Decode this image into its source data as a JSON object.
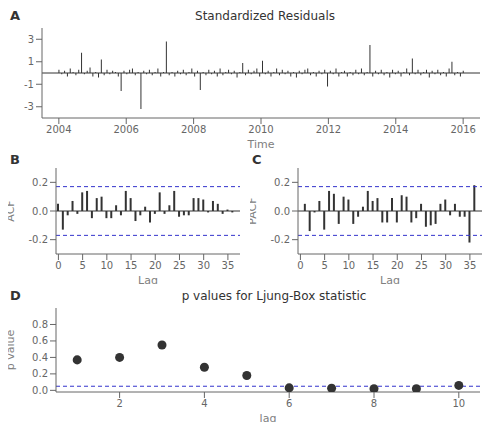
{
  "chart_data": [
    {
      "type": "stem",
      "title": "Standardized Residuals",
      "panel_label": "A",
      "x_label": "Time",
      "x": [
        2004,
        2004.0839,
        2004.1678,
        2004.2517,
        2004.3357,
        2004.4196,
        2004.5035,
        2004.5874,
        2004.6713,
        2004.7552,
        2004.8392,
        2004.9231,
        2005.007,
        2005.0909,
        2005.1748,
        2005.2587,
        2005.3427,
        2005.4266,
        2005.5105,
        2005.5944,
        2005.6783,
        2005.7622,
        2005.8462,
        2005.9301,
        2006.014,
        2006.0979,
        2006.1818,
        2006.2657,
        2006.3497,
        2006.4336,
        2006.5175,
        2006.6014,
        2006.6853,
        2006.7692,
        2006.8531,
        2006.9371,
        2007.021,
        2007.1049,
        2007.1888,
        2007.2727,
        2007.3566,
        2007.4406,
        2007.5245,
        2007.6084,
        2007.6923,
        2007.7762,
        2007.8601,
        2007.9441,
        2008.028,
        2008.1119,
        2008.1958,
        2008.2797,
        2008.3636,
        2008.4476,
        2008.5315,
        2008.6154,
        2008.6993,
        2008.7832,
        2008.8671,
        2008.951,
        2009.035,
        2009.1189,
        2009.2028,
        2009.2867,
        2009.3706,
        2009.4545,
        2009.5385,
        2009.6224,
        2009.7063,
        2009.7902,
        2009.8741,
        2009.958,
        2010.042,
        2010.1259,
        2010.2098,
        2010.2937,
        2010.3776,
        2010.4615,
        2010.5455,
        2010.6294,
        2010.7133,
        2010.7972,
        2010.8811,
        2010.965,
        2011.049,
        2011.1329,
        2011.2168,
        2011.3007,
        2011.3846,
        2011.4685,
        2011.5524,
        2011.6364,
        2011.7203,
        2011.8042,
        2011.8881,
        2011.972,
        2012.0559,
        2012.1399,
        2012.2238,
        2012.3077,
        2012.3916,
        2012.4755,
        2012.5594,
        2012.6434,
        2012.7273,
        2012.8112,
        2012.8951,
        2012.979,
        2013.0629,
        2013.1469,
        2013.2308,
        2013.3147,
        2013.3986,
        2013.4825,
        2013.5664,
        2013.6503,
        2013.7343,
        2013.8182,
        2013.9021,
        2013.986,
        2014.0699,
        2014.1538,
        2014.2378,
        2014.3217,
        2014.4056,
        2014.4895,
        2014.5734,
        2014.6573,
        2014.7413,
        2014.8252,
        2014.9091,
        2014.993,
        2015.0769,
        2015.1608,
        2015.2448,
        2015.3287,
        2015.4126,
        2015.4965,
        2015.5804,
        2015.6643,
        2015.7483,
        2015.8322,
        2015.9161,
        2016
      ],
      "values": [
        0.3,
        -0.1,
        0.2,
        -0.3,
        0.4,
        0.1,
        -0.2,
        0.3,
        1.8,
        -0.1,
        0.2,
        0.5,
        -0.3,
        0.1,
        -0.4,
        1.2,
        -0.2,
        0.3,
        -0.1,
        0.2,
        0.1,
        -0.3,
        -1.6,
        0.2,
        -0.1,
        0.3,
        0.4,
        -0.2,
        0.1,
        -3.2,
        0.2,
        -0.1,
        0.3,
        -0.2,
        0.1,
        0.4,
        -0.3,
        0.1,
        2.8,
        -0.2,
        0.1,
        -0.3,
        0.2,
        -0.1,
        0.3,
        -0.2,
        0.1,
        0.4,
        -0.3,
        0.2,
        -1.5,
        0.1,
        -0.2,
        0.3,
        -0.1,
        0.2,
        -0.3,
        0.4,
        -0.2,
        0.1,
        0.3,
        -0.1,
        0.2,
        -0.4,
        0.1,
        0.9,
        -0.2,
        0.3,
        -0.1,
        0.2,
        0.4,
        -0.3,
        1.1,
        -0.1,
        0.2,
        -0.3,
        0.1,
        0.4,
        -0.2,
        0.3,
        -0.1,
        0.2,
        -0.3,
        0.1,
        -0.4,
        0.2,
        -0.1,
        0.3,
        0.4,
        -0.2,
        0.1,
        -0.3,
        0.2,
        -0.1,
        0.3,
        -1.2,
        0.2,
        -0.1,
        0.4,
        -0.3,
        0.1,
        0.2,
        -0.3,
        0.1,
        -0.2,
        0.3,
        -0.1,
        0.4,
        -0.2,
        0.1,
        2.5,
        -0.3,
        0.2,
        -0.1,
        0.3,
        -0.2,
        0.1,
        -0.4,
        0.3,
        -0.1,
        0.2,
        -0.3,
        0.1,
        0.4,
        -0.2,
        1.3,
        -0.1,
        0.3,
        -0.2,
        0.1,
        0.3,
        -0.4,
        0.2,
        -0.1,
        0.3,
        -0.2,
        0.1,
        -0.3,
        0.4,
        1.0,
        -0.2,
        0.1,
        -0.3,
        0.2
      ],
      "color": "#333333",
      "xlim": [
        2003.5,
        2016.5
      ],
      "xticks": [
        2004,
        2006,
        2008,
        2010,
        2012,
        2014,
        2016
      ],
      "ylim": [
        -4,
        4
      ],
      "yticks": [
        -3,
        -1,
        1,
        3
      ],
      "reference_lines": [
        {
          "value": 0,
          "color": "#333333"
        }
      ]
    },
    {
      "type": "stem",
      "panel_label": "B",
      "x_label": "Lag",
      "y_label": "ACF",
      "x": [
        0,
        1,
        2,
        3,
        4,
        5,
        6,
        7,
        8,
        9,
        10,
        11,
        12,
        13,
        14,
        15,
        16,
        17,
        18,
        19,
        20,
        21,
        22,
        23,
        24,
        25,
        26,
        27,
        28,
        29,
        30,
        31,
        32,
        33,
        34,
        35,
        36
      ],
      "values": [
        0.05,
        -0.13,
        -0.03,
        0.07,
        -0.02,
        0.13,
        0.14,
        -0.05,
        0.09,
        0.1,
        -0.05,
        -0.05,
        0.04,
        -0.03,
        0.14,
        0.09,
        -0.07,
        -0.03,
        0.03,
        -0.08,
        -0.02,
        0.13,
        -0.02,
        0.04,
        0.14,
        -0.04,
        -0.03,
        -0.03,
        0.09,
        0.09,
        0.08,
        -0.01,
        0.07,
        0.05,
        -0.02,
        0.01,
        -0.01
      ],
      "color": "#333333",
      "xlim": [
        -0.5,
        37.5
      ],
      "xticks": [
        0,
        5,
        10,
        15,
        20,
        25,
        30,
        35
      ],
      "ylim": [
        -0.3,
        0.3
      ],
      "yticks": [
        -0.2,
        {
          "value": 0,
          "label": "0.0"
        },
        0.2
      ],
      "reference_lines": [
        {
          "value": 0,
          "color": "#333333"
        },
        {
          "value": 0.17,
          "color": "#3333CC",
          "line_style": "dashed"
        },
        {
          "value": -0.17,
          "color": "#3333CC",
          "line_style": "dashed"
        }
      ]
    },
    {
      "type": "stem",
      "panel_label": "C",
      "x_label": "Lag",
      "y_label": "PACF",
      "x": [
        1,
        2,
        3,
        4,
        5,
        6,
        7,
        8,
        9,
        10,
        11,
        12,
        13,
        14,
        15,
        16,
        17,
        18,
        19,
        20,
        21,
        22,
        23,
        24,
        25,
        26,
        27,
        28,
        29,
        30,
        31,
        32,
        33,
        34,
        35,
        36
      ],
      "values": [
        0.05,
        -0.14,
        -0.01,
        0.07,
        -0.13,
        0.14,
        0.12,
        -0.09,
        0.1,
        0.08,
        -0.09,
        -0.04,
        0.03,
        0.14,
        0.07,
        0.09,
        -0.08,
        -0.08,
        0.09,
        -0.08,
        0.11,
        0.1,
        -0.08,
        -0.05,
        0.05,
        -0.11,
        -0.1,
        -0.09,
        0.05,
        0.08,
        -0.03,
        0.05,
        -0.04,
        -0.04,
        -0.22,
        0.18
      ],
      "color": "#333333",
      "xlim": [
        -0.5,
        37.5
      ],
      "xticks": [
        0,
        5,
        10,
        15,
        20,
        25,
        30,
        35
      ],
      "ylim": [
        -0.3,
        0.3
      ],
      "yticks": [
        -0.2,
        {
          "value": 0,
          "label": "0.0"
        },
        0.2
      ],
      "reference_lines": [
        {
          "value": 0,
          "color": "#333333"
        },
        {
          "value": 0.17,
          "color": "#3333CC",
          "line_style": "dashed"
        },
        {
          "value": -0.17,
          "color": "#3333CC",
          "line_style": "dashed"
        }
      ]
    },
    {
      "type": "scatter",
      "title": "p values for Ljung-Box statistic",
      "panel_label": "D",
      "x_label": "lag",
      "y_label": "p value",
      "x": [
        1,
        2,
        3,
        4,
        5,
        6,
        7,
        8,
        9,
        10
      ],
      "values": [
        0.37,
        0.4,
        0.55,
        0.28,
        0.18,
        0.03,
        0.025,
        0.02,
        0.02,
        0.06
      ],
      "color": "#333333",
      "xlim": [
        0.5,
        10.5
      ],
      "xticks": [
        2,
        4,
        6,
        8,
        10
      ],
      "ylim": [
        -0.02,
        1.0
      ],
      "yticks": [
        {
          "value": 0,
          "label": "0.0"
        },
        0.2,
        0.4,
        0.6,
        0.8
      ],
      "reference_lines": [
        {
          "value": 0.05,
          "color": "#3333CC",
          "line_style": "dashed"
        }
      ]
    }
  ]
}
